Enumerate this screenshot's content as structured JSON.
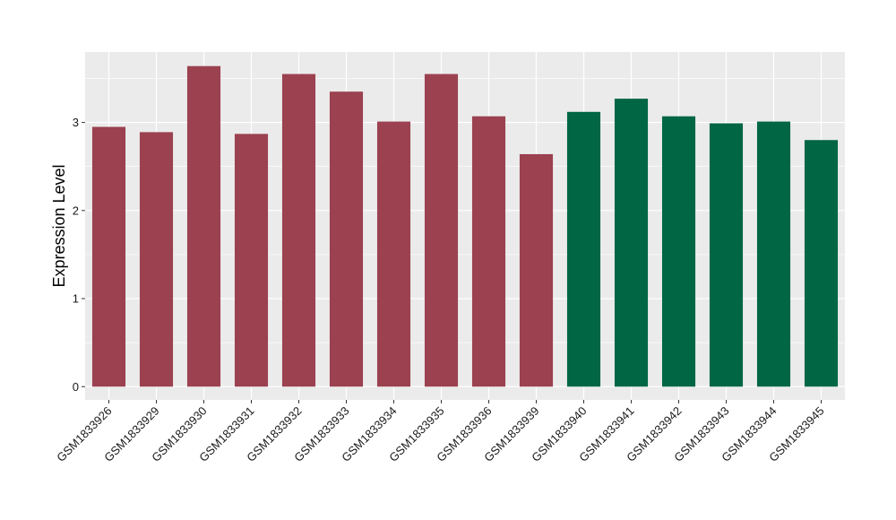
{
  "chart_data": {
    "type": "bar",
    "title": "",
    "xlabel": "",
    "ylabel": "Expression Level",
    "ylim": [
      -0.15,
      3.8
    ],
    "yticks": [
      0,
      1,
      2,
      3
    ],
    "grid": true,
    "legend": "none",
    "colors": {
      "group1": "#9b4150",
      "group2": "#006644",
      "panel": "#ebebeb",
      "gridline": "#ffffff"
    },
    "categories": [
      "GSM1833926",
      "GSM1833929",
      "GSM1833930",
      "GSM1833931",
      "GSM1833932",
      "GSM1833933",
      "GSM1833934",
      "GSM1833935",
      "GSM1833936",
      "GSM1833939",
      "GSM1833940",
      "GSM1833941",
      "GSM1833942",
      "GSM1833943",
      "GSM1833944",
      "GSM1833945"
    ],
    "values": [
      2.95,
      2.89,
      3.64,
      2.87,
      3.55,
      3.35,
      3.01,
      3.55,
      3.07,
      2.64,
      3.12,
      3.27,
      3.07,
      2.99,
      3.01,
      2.8
    ],
    "groups": [
      1,
      1,
      1,
      1,
      1,
      1,
      1,
      1,
      1,
      1,
      2,
      2,
      2,
      2,
      2,
      2
    ]
  }
}
